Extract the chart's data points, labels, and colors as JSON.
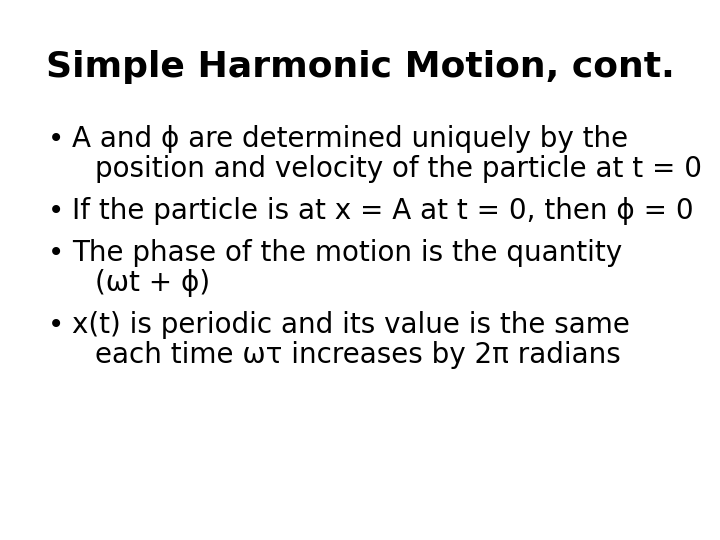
{
  "title": "Simple Harmonic Motion, cont.",
  "title_fontsize": 26,
  "title_fontweight": "bold",
  "background_color": "#ffffff",
  "text_color": "#000000",
  "bullet_points": [
    {
      "lines": [
        "A and ϕ are determined uniquely by the",
        "position and velocity of the particle at t = 0"
      ]
    },
    {
      "lines": [
        "If the particle is at x = A at t = 0, then ϕ = 0"
      ]
    },
    {
      "lines": [
        "The phase of the motion is the quantity",
        "(ωt + ϕ)"
      ]
    },
    {
      "lines": [
        "x(t) is periodic and its value is the same",
        "each time ωτ increases by 2π radians"
      ]
    }
  ],
  "bullet_fontsize": 20,
  "fig_width": 7.2,
  "fig_height": 5.4,
  "dpi": 100
}
